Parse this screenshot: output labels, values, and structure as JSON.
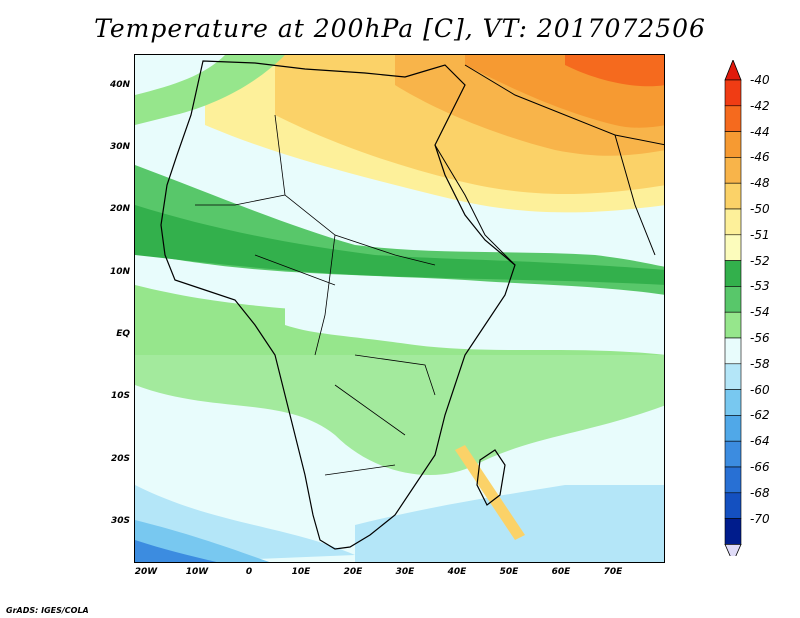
{
  "title": "Temperature at 200hPa [C], VT: 2017072506",
  "footer": "GrADS: IGES/COLA",
  "map": {
    "lat_labels": [
      "40N",
      "30N",
      "20N",
      "10N",
      "EQ",
      "10S",
      "20S",
      "30S"
    ],
    "lon_labels": [
      "20W",
      "10W",
      "0",
      "10E",
      "20E",
      "30E",
      "40E",
      "50E",
      "60E",
      "70E"
    ]
  },
  "colorbar": {
    "labels": [
      "-40",
      "-42",
      "-44",
      "-46",
      "-48",
      "-50",
      "-51",
      "-52",
      "-53",
      "-54",
      "-56",
      "-58",
      "-60",
      "-62",
      "-64",
      "-66",
      "-68",
      "-70"
    ],
    "colors": [
      "#f03c14",
      "#f56a1e",
      "#f69a32",
      "#f8b44a",
      "#fbd268",
      "#fdf09a",
      "#fcfcbc",
      "#33b04c",
      "#58c76a",
      "#96e68c",
      "#e8fcfc",
      "#b4e6f8",
      "#78c8f0",
      "#50a8e8",
      "#3c8ce0",
      "#2870d4",
      "#1450c0",
      "#001c8c"
    ],
    "top_arrow_color": "#e01a0c",
    "bottom_arrow_color": "#e0dcf8"
  }
}
